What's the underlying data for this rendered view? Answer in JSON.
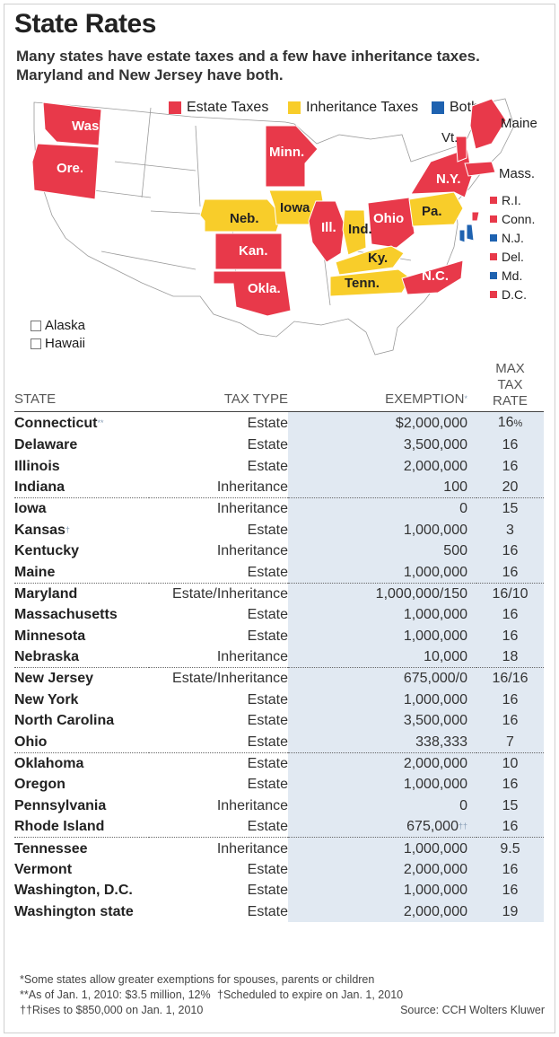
{
  "title": "State Rates",
  "subtitle": "Many states have estate taxes and a few have inheritance taxes. Maryland and New Jersey have both.",
  "colors": {
    "estate": "#e8394a",
    "inheritance": "#f8cd2a",
    "both": "#1e62b0",
    "none": "#ffffff",
    "shade": "#e1e9f2"
  },
  "legend": [
    {
      "label": "Estate Taxes",
      "color": "#e8394a"
    },
    {
      "label": "Inheritance Taxes",
      "color": "#f8cd2a"
    },
    {
      "label": "Both",
      "color": "#1e62b0"
    }
  ],
  "map": {
    "states": [
      {
        "label": "Wash.",
        "tax": "estate"
      },
      {
        "label": "Ore.",
        "tax": "estate"
      },
      {
        "label": "Minn.",
        "tax": "estate"
      },
      {
        "label": "Neb.",
        "tax": "inheritance"
      },
      {
        "label": "Iowa",
        "tax": "inheritance"
      },
      {
        "label": "Kan.",
        "tax": "estate"
      },
      {
        "label": "Okla.",
        "tax": "estate"
      },
      {
        "label": "Ill.",
        "tax": "estate"
      },
      {
        "label": "Ind.",
        "tax": "inheritance"
      },
      {
        "label": "Ohio",
        "tax": "estate"
      },
      {
        "label": "Ky.",
        "tax": "inheritance"
      },
      {
        "label": "Tenn.",
        "tax": "inheritance"
      },
      {
        "label": "N.C.",
        "tax": "estate"
      },
      {
        "label": "Pa.",
        "tax": "inheritance"
      },
      {
        "label": "N.Y.",
        "tax": "estate"
      },
      {
        "label": "Vt.",
        "tax": "estate"
      },
      {
        "label": "Maine",
        "tax": "estate"
      },
      {
        "label": "Mass.",
        "tax": "estate"
      }
    ],
    "side_labels": [
      {
        "label": "R.I.",
        "tax": "estate"
      },
      {
        "label": "Conn.",
        "tax": "estate"
      },
      {
        "label": "N.J.",
        "tax": "both"
      },
      {
        "label": "Del.",
        "tax": "estate"
      },
      {
        "label": "Md.",
        "tax": "both"
      },
      {
        "label": "D.C.",
        "tax": "estate"
      }
    ],
    "insets": [
      "Alaska",
      "Hawaii"
    ]
  },
  "chart_data": {
    "type": "table",
    "columns": [
      "STATE",
      "TAX TYPE",
      "EXEMPTION*",
      "MAX TAX RATE"
    ],
    "rows": [
      {
        "state": "Connecticut",
        "mark": "**",
        "tax_type": "Estate",
        "exemption": "$2,000,000",
        "rate": "16",
        "rate_suffix": "%"
      },
      {
        "state": "Delaware",
        "tax_type": "Estate",
        "exemption": "3,500,000",
        "rate": "16"
      },
      {
        "state": "Illinois",
        "tax_type": "Estate",
        "exemption": "2,000,000",
        "rate": "16"
      },
      {
        "state": "Indiana",
        "tax_type": "Inheritance",
        "exemption": "100",
        "rate": "20"
      },
      {
        "state": "Iowa",
        "tax_type": "Inheritance",
        "exemption": "0",
        "rate": "15"
      },
      {
        "state": "Kansas",
        "mark": "†",
        "tax_type": "Estate",
        "exemption": "1,000,000",
        "rate": "3"
      },
      {
        "state": "Kentucky",
        "tax_type": "Inheritance",
        "exemption": "500",
        "rate": "16"
      },
      {
        "state": "Maine",
        "tax_type": "Estate",
        "exemption": "1,000,000",
        "rate": "16"
      },
      {
        "state": "Maryland",
        "tax_type": "Estate/Inheritance",
        "exemption": "1,000,000/150",
        "rate": "16/10"
      },
      {
        "state": "Massachusetts",
        "tax_type": "Estate",
        "exemption": "1,000,000",
        "rate": "16"
      },
      {
        "state": "Minnesota",
        "tax_type": "Estate",
        "exemption": "1,000,000",
        "rate": "16"
      },
      {
        "state": "Nebraska",
        "tax_type": "Inheritance",
        "exemption": "10,000",
        "rate": "18"
      },
      {
        "state": "New Jersey",
        "tax_type": "Estate/Inheritance",
        "exemption": "675,000/0",
        "rate": "16/16"
      },
      {
        "state": "New York",
        "tax_type": "Estate",
        "exemption": "1,000,000",
        "rate": "16"
      },
      {
        "state": "North Carolina",
        "tax_type": "Estate",
        "exemption": "3,500,000",
        "rate": "16"
      },
      {
        "state": "Ohio",
        "tax_type": "Estate",
        "exemption": "338,333",
        "rate": "7"
      },
      {
        "state": "Oklahoma",
        "tax_type": "Estate",
        "exemption": "2,000,000",
        "rate": "10"
      },
      {
        "state": "Oregon",
        "tax_type": "Estate",
        "exemption": "1,000,000",
        "rate": "16"
      },
      {
        "state": "Pennsylvania",
        "tax_type": "Inheritance",
        "exemption": "0",
        "rate": "15"
      },
      {
        "state": "Rhode Island",
        "tax_type": "Estate",
        "exemption": "675,000",
        "exemption_mark": "††",
        "rate": "16"
      },
      {
        "state": "Tennessee",
        "tax_type": "Inheritance",
        "exemption": "1,000,000",
        "rate": "9.5"
      },
      {
        "state": "Vermont",
        "tax_type": "Estate",
        "exemption": "2,000,000",
        "rate": "16"
      },
      {
        "state": "Washington, D.C.",
        "tax_type": "Estate",
        "exemption": "1,000,000",
        "rate": "16"
      },
      {
        "state": "Washington state",
        "tax_type": "Estate",
        "exemption": "2,000,000",
        "rate": "19"
      }
    ]
  },
  "header": {
    "state": "STATE",
    "tax_type": "TAX TYPE",
    "exemption": "EXEMPTION",
    "exemption_mark": "*",
    "rate_1": "MAX",
    "rate_2": "TAX",
    "rate_3": "RATE"
  },
  "footnotes": {
    "n1": "*Some states allow greater exemptions for spouses, parents or children",
    "n2": "**As of Jan. 1, 2010: $3.5 million, 12%",
    "n3": "†Scheduled to expire on Jan. 1, 2010",
    "n4": "††Rises to $850,000 on Jan. 1, 2010",
    "source": "Source: CCH Wolters Kluwer"
  }
}
